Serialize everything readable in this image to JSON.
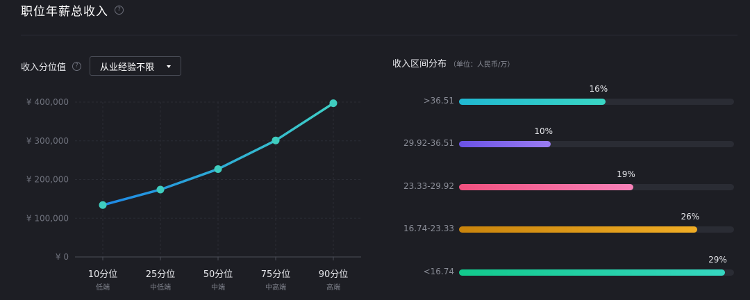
{
  "header": {
    "title": "职位年薪总收入",
    "help_glyph": "?"
  },
  "left_panel": {
    "label": "收入分位值",
    "help_glyph": "?",
    "dropdown": {
      "selected": "从业经验不限"
    }
  },
  "right_panel": {
    "title": "收入区间分布",
    "unit": "（单位：人民币/万）"
  },
  "chart_data": [
    {
      "type": "line",
      "categories": [
        "10分位",
        "25分位",
        "50分位",
        "75分位",
        "90分位"
      ],
      "sublabels": [
        "低端",
        "中低端",
        "中端",
        "中高端",
        "高端"
      ],
      "values": [
        134000,
        174000,
        227000,
        301000,
        397000
      ],
      "yticks": [
        "¥ 0",
        "¥ 100,000",
        "¥ 200,000",
        "¥ 300,000",
        "¥ 400,000"
      ],
      "ylim": [
        0,
        400000
      ],
      "grid": true,
      "colors": {
        "line_start": "#1e88e5",
        "line_end": "#3ecfc6",
        "point": "#3fcdbf"
      }
    },
    {
      "type": "bar",
      "orientation": "horizontal",
      "categories": [
        ">36.51",
        "29.92-36.51",
        "23.33-29.92",
        "16.74-23.33",
        "<16.74"
      ],
      "values": [
        16,
        10,
        19,
        26,
        29
      ],
      "value_labels": [
        "16%",
        "10%",
        "19%",
        "26%",
        "29%"
      ],
      "xlim": [
        0,
        30
      ],
      "colors": [
        [
          "#20b8d2",
          "#3ad6c4"
        ],
        [
          "#6a52e6",
          "#9a7cf2"
        ],
        [
          "#f0507e",
          "#f782b9"
        ],
        [
          "#c9840c",
          "#f0ad25"
        ],
        [
          "#12c98c",
          "#36d6c0"
        ]
      ]
    }
  ]
}
